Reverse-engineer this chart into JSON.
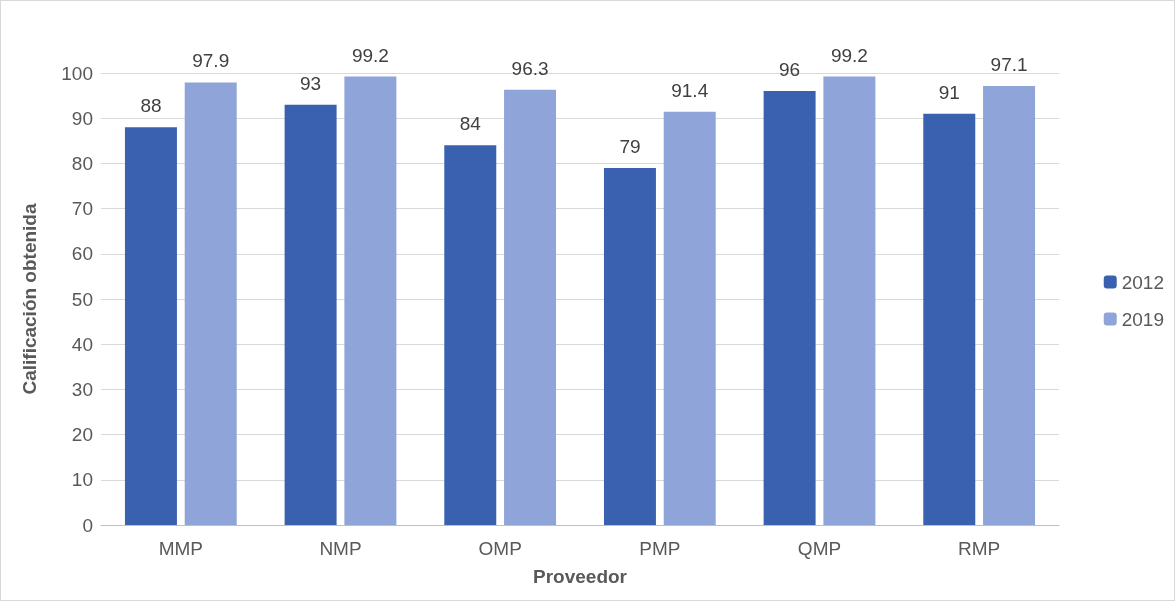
{
  "chart_data": {
    "type": "bar",
    "xlabel": "Proveedor",
    "ylabel": "Calificación obtenida",
    "categories": [
      "MMP",
      "NMP",
      "OMP",
      "PMP",
      "QMP",
      "RMP"
    ],
    "series": [
      {
        "name": "2012",
        "color": "#3a60b0",
        "values": [
          88,
          93,
          84,
          79,
          96,
          91
        ]
      },
      {
        "name": "2019",
        "color": "#8fa4d8",
        "values": [
          97.9,
          99.2,
          96.3,
          91.4,
          99.2,
          97.1
        ]
      }
    ],
    "ylim": [
      0,
      100
    ],
    "yticks": [
      0,
      10,
      20,
      30,
      40,
      50,
      60,
      70,
      80,
      90,
      100
    ],
    "grid": "y",
    "legend": "right",
    "data_labels": true
  }
}
